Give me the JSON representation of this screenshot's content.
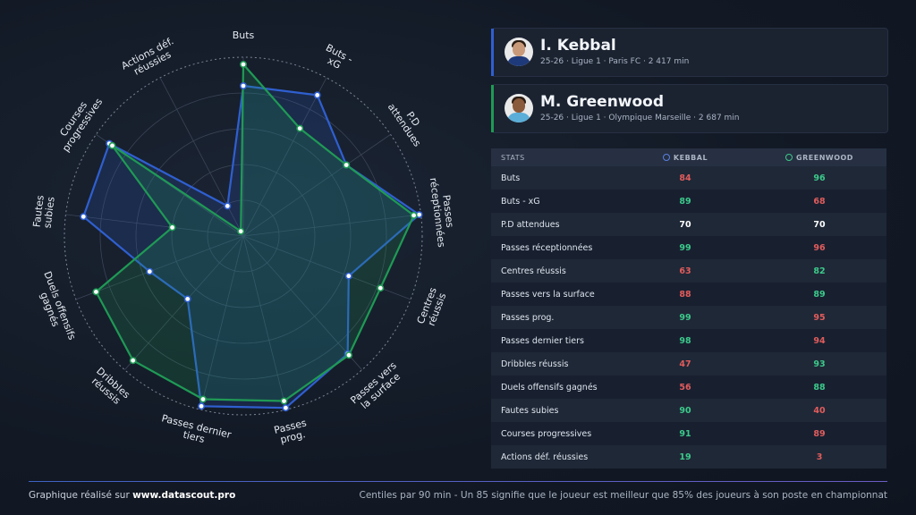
{
  "players": [
    {
      "name": "I. Kebbal",
      "meta": "25-26 · Ligue 1 · Paris FC · 2 417 min",
      "color": "#2f5fd0",
      "skin": "#c89a7a",
      "shirt": "#1e3a7a"
    },
    {
      "name": "M. Greenwood",
      "meta": "25-26 · Ligue 1 · Olympique Marseille · 2 687 min",
      "color": "#1f9a55",
      "skin": "#8a5a3c",
      "shirt": "#5aaed8"
    }
  ],
  "table": {
    "header_stat": "STATS",
    "header_p1": "KEBBAL",
    "header_p2": "GREENWOOD"
  },
  "colors": {
    "high": "#3cc98a",
    "low": "#e05c5c",
    "equal": "#ffffff"
  },
  "chart_data": {
    "type": "radar",
    "range": [
      0,
      100
    ],
    "categories": [
      "Buts",
      "Buts - xG",
      "P.D attendues",
      "Passes réceptionnées",
      "Centres réussis",
      "Passes vers la surface",
      "Passes prog.",
      "Passes dernier tiers",
      "Dribbles réussis",
      "Duels offensifs gagnés",
      "Fautes subies",
      "Courses progressives",
      "Actions déf. réussies"
    ],
    "axis_labels": [
      [
        "Buts"
      ],
      [
        "Buts -",
        "xG"
      ],
      [
        "P.D",
        "attendues"
      ],
      [
        "Passes",
        "réceptionnées"
      ],
      [
        "Centres",
        "réussis"
      ],
      [
        "Passes vers",
        "la surface"
      ],
      [
        "Passes",
        "prog."
      ],
      [
        "Passes dernier",
        "tiers"
      ],
      [
        "Dribbles",
        "réussis"
      ],
      [
        "Duels offensifs",
        "gagnés"
      ],
      [
        "Fautes",
        "subies"
      ],
      [
        "Courses",
        "progressives"
      ],
      [
        "Actions déf.",
        "réussies"
      ]
    ],
    "series": [
      {
        "name": "Kebbal",
        "values": [
          84,
          89,
          70,
          99,
          63,
          88,
          99,
          98,
          47,
          56,
          90,
          91,
          19
        ]
      },
      {
        "name": "Greenwood",
        "values": [
          96,
          68,
          70,
          96,
          82,
          89,
          95,
          94,
          93,
          88,
          40,
          89,
          3
        ]
      }
    ]
  },
  "footer": {
    "left_prefix": "Graphique réalisé sur ",
    "left_site": "www.datascout.pro",
    "right": "Centiles par 90 min - Un 85 signifie que le joueur est meilleur que 85% des joueurs à son poste en championnat"
  }
}
